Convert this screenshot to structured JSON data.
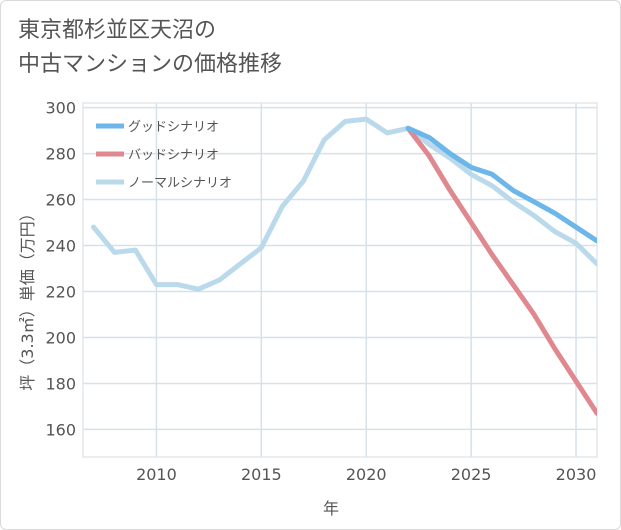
{
  "title": "東京都杉並区天沼の\n中古マンションの価格推移",
  "chart_data": {
    "type": "line",
    "xlabel": "年",
    "ylabel": "坪（3.3㎡）単価（万円）",
    "xlim": [
      2006.5,
      2031
    ],
    "ylim": [
      148,
      302
    ],
    "xticks": [
      2010,
      2015,
      2020,
      2025,
      2030
    ],
    "yticks": [
      160,
      180,
      200,
      220,
      240,
      260,
      280,
      300
    ],
    "grid": true,
    "legend_position": "top-left",
    "series": [
      {
        "name": "グッドシナリオ",
        "color": "#6cb6ea",
        "x": [
          2022,
          2023,
          2024,
          2025,
          2026,
          2027,
          2028,
          2029,
          2030,
          2031
        ],
        "y": [
          291,
          287,
          280,
          274,
          271,
          264,
          259,
          254,
          248,
          242
        ]
      },
      {
        "name": "バッドシナリオ",
        "color": "#e0888f",
        "x": [
          2022,
          2023,
          2024,
          2025,
          2026,
          2027,
          2028,
          2029,
          2030,
          2031
        ],
        "y": [
          291,
          279,
          264,
          250,
          236,
          223,
          210,
          195,
          181,
          167
        ]
      },
      {
        "name": "ノーマルシナリオ",
        "color": "#badaeb",
        "x": [
          2007,
          2008,
          2009,
          2010,
          2011,
          2012,
          2013,
          2014,
          2015,
          2016,
          2017,
          2018,
          2019,
          2020,
          2021,
          2022,
          2023,
          2024,
          2025,
          2026,
          2027,
          2028,
          2029,
          2030,
          2031
        ],
        "y": [
          248,
          237,
          238,
          223,
          223,
          221,
          225,
          232,
          239,
          257,
          268,
          286,
          294,
          295,
          289,
          291,
          284,
          278,
          271,
          266,
          259,
          253,
          246,
          241,
          232
        ]
      }
    ]
  }
}
